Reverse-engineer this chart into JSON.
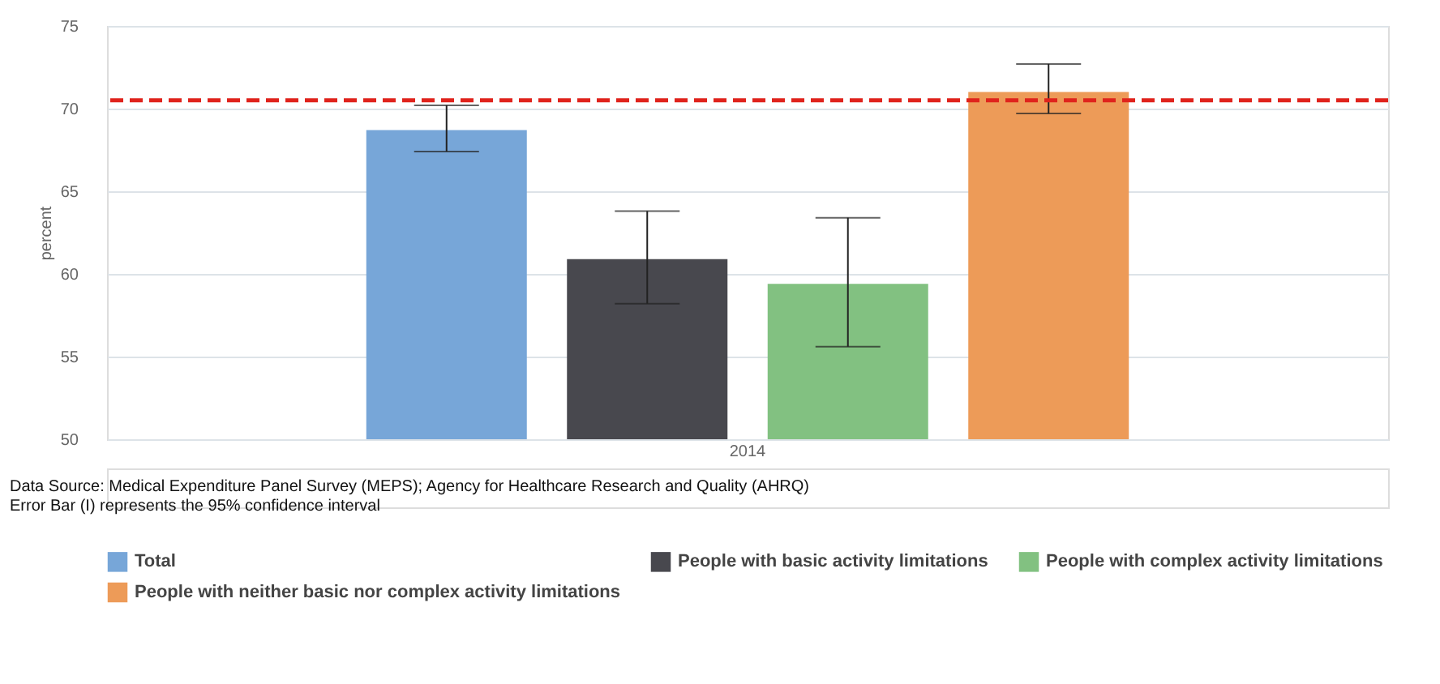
{
  "chart_data": {
    "type": "bar",
    "categories": [
      "2014"
    ],
    "ylabel": "percent",
    "ylim": [
      50,
      75
    ],
    "yticks": [
      50,
      55,
      60,
      65,
      70,
      75
    ],
    "grid": "y",
    "legend": "bottom",
    "series": [
      {
        "name": "Total",
        "color": "#77a6d8",
        "values": [
          68.7
        ],
        "errors": [
          [
            67.4,
            70.2
          ]
        ]
      },
      {
        "name": "People with basic activity limitations",
        "color": "#48484e",
        "values": [
          60.9
        ],
        "errors": [
          [
            58.2,
            63.8
          ]
        ]
      },
      {
        "name": "People with complex activity limitations",
        "color": "#82c181",
        "values": [
          59.4
        ],
        "errors": [
          [
            55.6,
            63.4
          ]
        ]
      },
      {
        "name": "People with neither basic nor complex activity limitations",
        "color": "#ed9b58",
        "values": [
          71.0
        ],
        "errors": [
          [
            69.7,
            72.7
          ]
        ]
      }
    ],
    "ref_lines": [
      {
        "axis": "y",
        "value": 70.5,
        "color": "#e0231c",
        "line_style": "dashed"
      }
    ],
    "annotations": [
      "Data Source: Medical Expenditure Panel Survey (MEPS); Agency for Healthcare Research and Quality (AHRQ)",
      "Error Bar (I) represents the 95% confidence interval"
    ]
  }
}
